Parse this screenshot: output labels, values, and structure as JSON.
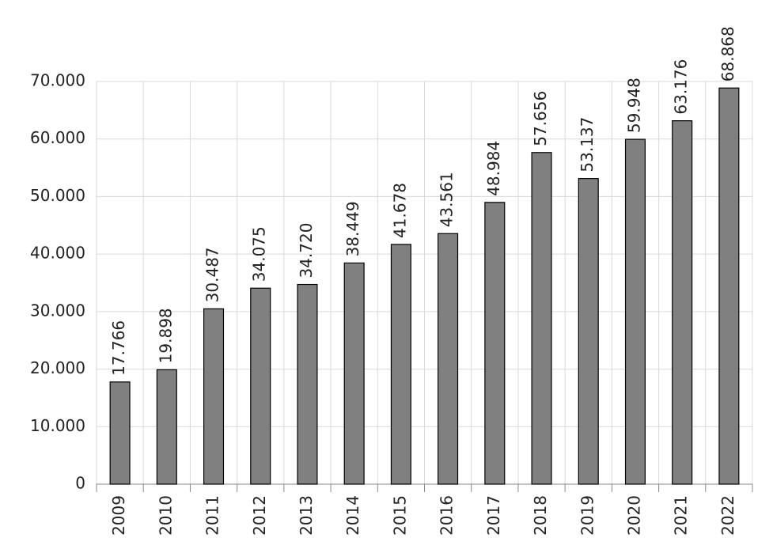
{
  "chart_data": {
    "type": "bar",
    "categories": [
      "2009",
      "2010",
      "2011",
      "2012",
      "2013",
      "2014",
      "2015",
      "2016",
      "2017",
      "2018",
      "2019",
      "2020",
      "2021",
      "2022"
    ],
    "values": [
      17766,
      19898,
      30487,
      34075,
      34720,
      38449,
      41678,
      43561,
      48984,
      57656,
      53137,
      59948,
      63176,
      68868
    ],
    "value_labels": [
      "17.766",
      "19.898",
      "30.487",
      "34.075",
      "34.720",
      "38.449",
      "41.678",
      "43.561",
      "48.984",
      "57.656",
      "53.137",
      "59.948",
      "63.176",
      "68.868"
    ],
    "color": "#808080",
    "ylim": [
      0,
      70000
    ],
    "yticks": [
      0,
      {
        "value": 10000,
        "label": "10.000"
      },
      {
        "value": 20000,
        "label": "20.000"
      },
      {
        "value": 30000,
        "label": "30.000"
      },
      {
        "value": 40000,
        "label": "40.000"
      },
      {
        "value": 50000,
        "label": "50.000"
      },
      {
        "value": 60000,
        "label": "60.000"
      },
      {
        "value": 70000,
        "label": "70.000"
      }
    ],
    "grid": true
  }
}
